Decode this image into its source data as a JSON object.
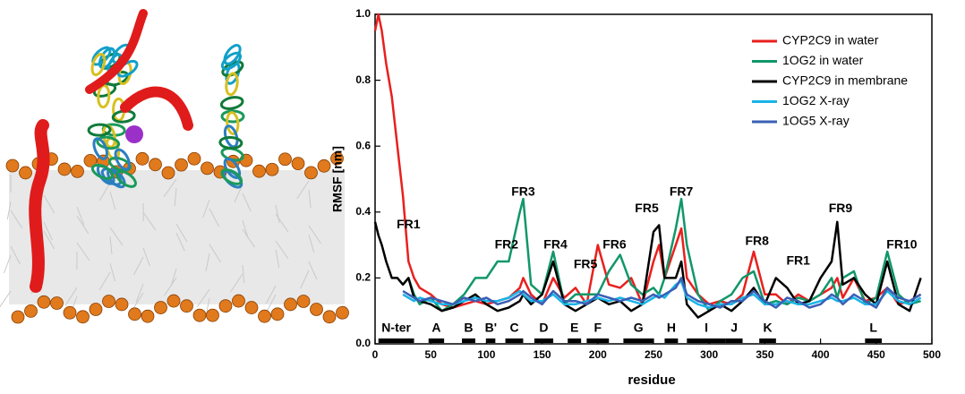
{
  "chart_data": {
    "type": "line",
    "xlabel": "residue",
    "ylabel": "RMSF [nm]",
    "xlim": [
      0,
      500
    ],
    "ylim": [
      0,
      1
    ],
    "xticks": [
      0,
      50,
      100,
      150,
      200,
      250,
      300,
      350,
      400,
      450,
      500
    ],
    "yticks": [
      {
        "value": 0,
        "label": "0.0"
      },
      0.2,
      0.4,
      0.6,
      0.8,
      {
        "value": 1,
        "label": "1.0"
      }
    ],
    "legend": "upper right",
    "x": [
      0,
      3,
      6,
      10,
      15,
      20,
      25,
      30,
      35,
      40,
      50,
      60,
      70,
      80,
      90,
      100,
      110,
      120,
      130,
      133,
      140,
      150,
      160,
      170,
      180,
      190,
      200,
      210,
      220,
      230,
      240,
      250,
      255,
      260,
      270,
      275,
      280,
      290,
      300,
      310,
      320,
      330,
      340,
      350,
      360,
      370,
      380,
      390,
      400,
      410,
      415,
      420,
      430,
      440,
      450,
      460,
      470,
      480,
      490
    ],
    "series": [
      {
        "name": "CYP2C9 in water",
        "color": "#e8201e",
        "values": [
          0.95,
          1.0,
          0.95,
          0.85,
          0.75,
          0.6,
          0.45,
          0.25,
          0.2,
          0.17,
          0.15,
          0.12,
          0.11,
          0.12,
          0.13,
          0.12,
          0.13,
          0.14,
          0.17,
          0.2,
          0.15,
          0.12,
          0.2,
          0.14,
          0.17,
          0.12,
          0.3,
          0.18,
          0.17,
          0.2,
          0.12,
          0.25,
          0.3,
          0.2,
          0.3,
          0.35,
          0.2,
          0.15,
          0.12,
          0.13,
          0.12,
          0.15,
          0.28,
          0.15,
          0.15,
          0.12,
          0.15,
          0.13,
          0.15,
          0.17,
          0.2,
          0.14,
          0.2,
          0.13,
          0.14,
          0.17,
          0.12,
          0.13,
          0.15
        ]
      },
      {
        "name": "1OG2 in water",
        "color": "#10976a",
        "values": [
          null,
          null,
          null,
          null,
          null,
          null,
          0.18,
          0.2,
          0.15,
          0.12,
          0.14,
          0.1,
          0.12,
          0.15,
          0.2,
          0.2,
          0.25,
          0.25,
          0.4,
          0.44,
          0.18,
          0.15,
          0.28,
          0.12,
          0.15,
          0.15,
          0.15,
          0.22,
          0.27,
          0.18,
          0.15,
          0.17,
          0.15,
          0.2,
          0.35,
          0.44,
          0.3,
          0.15,
          0.1,
          0.13,
          0.15,
          0.2,
          0.22,
          0.12,
          0.13,
          0.12,
          0.14,
          0.13,
          0.15,
          0.2,
          0.14,
          0.2,
          0.22,
          0.12,
          0.14,
          0.28,
          0.15,
          0.12,
          0.13
        ]
      },
      {
        "name": "CYP2C9 in membrane",
        "color": "#000000",
        "values": [
          0.37,
          0.33,
          0.3,
          0.25,
          0.2,
          0.2,
          0.18,
          0.2,
          0.14,
          0.13,
          0.12,
          0.1,
          0.11,
          0.13,
          0.15,
          0.12,
          0.1,
          0.11,
          0.13,
          0.15,
          0.12,
          0.15,
          0.25,
          0.12,
          0.1,
          0.12,
          0.14,
          0.12,
          0.13,
          0.1,
          0.12,
          0.34,
          0.36,
          0.2,
          0.2,
          0.25,
          0.12,
          0.08,
          0.1,
          0.12,
          0.1,
          0.13,
          0.17,
          0.12,
          0.2,
          0.17,
          0.12,
          0.13,
          0.2,
          0.25,
          0.37,
          0.18,
          0.2,
          0.15,
          0.12,
          0.25,
          0.12,
          0.1,
          0.2
        ]
      },
      {
        "name": "1OG2 X-ray",
        "color": "#19b4e6",
        "values": [
          null,
          null,
          null,
          null,
          null,
          null,
          0.15,
          0.14,
          0.13,
          0.14,
          0.13,
          0.12,
          0.12,
          0.13,
          0.14,
          0.13,
          0.13,
          0.14,
          0.16,
          0.15,
          0.13,
          0.13,
          0.15,
          0.12,
          0.12,
          0.13,
          0.14,
          0.13,
          0.14,
          0.13,
          0.12,
          0.14,
          0.15,
          0.14,
          0.18,
          0.19,
          0.14,
          0.12,
          0.11,
          0.12,
          0.12,
          0.14,
          0.15,
          0.12,
          0.12,
          0.13,
          0.12,
          0.12,
          0.13,
          0.14,
          0.13,
          0.13,
          0.14,
          0.12,
          0.12,
          0.16,
          0.13,
          0.12,
          0.14
        ]
      },
      {
        "name": "1OG5 X-ray",
        "color": "#3a5fb5",
        "values": [
          null,
          null,
          null,
          null,
          null,
          null,
          0.16,
          0.15,
          0.14,
          0.13,
          0.14,
          0.13,
          0.12,
          0.14,
          0.13,
          0.14,
          0.12,
          0.13,
          0.15,
          0.16,
          0.14,
          0.12,
          0.16,
          0.13,
          0.13,
          0.12,
          0.15,
          0.14,
          0.13,
          0.14,
          0.13,
          0.15,
          0.14,
          0.15,
          0.17,
          0.2,
          0.15,
          0.13,
          0.12,
          0.11,
          0.13,
          0.13,
          0.16,
          0.13,
          0.11,
          0.14,
          0.13,
          0.11,
          0.12,
          0.15,
          0.14,
          0.12,
          0.15,
          0.13,
          0.11,
          0.17,
          0.14,
          0.13,
          0.15
        ]
      }
    ],
    "annotations": [
      {
        "text": "FR1",
        "x": 30,
        "y": 0.36
      },
      {
        "text": "FR2",
        "x": 118,
        "y": 0.3
      },
      {
        "text": "FR3",
        "x": 133,
        "y": 0.46
      },
      {
        "text": "FR4",
        "x": 162,
        "y": 0.3
      },
      {
        "text": "FR5",
        "x": 189,
        "y": 0.24
      },
      {
        "text": "FR6",
        "x": 215,
        "y": 0.3
      },
      {
        "text": "FR5",
        "x": 244,
        "y": 0.41
      },
      {
        "text": "FR7",
        "x": 275,
        "y": 0.46
      },
      {
        "text": "FR8",
        "x": 343,
        "y": 0.31
      },
      {
        "text": "FR1",
        "x": 380,
        "y": 0.25
      },
      {
        "text": "FR9",
        "x": 418,
        "y": 0.41
      },
      {
        "text": "FR10",
        "x": 473,
        "y": 0.3
      }
    ],
    "segments": [
      {
        "label": "N-ter",
        "start": 3,
        "end": 35
      },
      {
        "label": "A",
        "start": 48,
        "end": 62
      },
      {
        "label": "B",
        "start": 78,
        "end": 90
      },
      {
        "label": "B'",
        "start": 100,
        "end": 108
      },
      {
        "label": "C",
        "start": 117,
        "end": 133
      },
      {
        "label": "D",
        "start": 143,
        "end": 160
      },
      {
        "label": "E",
        "start": 173,
        "end": 185
      },
      {
        "label": "F",
        "start": 190,
        "end": 210
      },
      {
        "label": "G",
        "start": 223,
        "end": 250
      },
      {
        "label": "H",
        "start": 260,
        "end": 272
      },
      {
        "label": "I",
        "start": 280,
        "end": 315
      },
      {
        "label": "J",
        "start": 315,
        "end": 330
      },
      {
        "label": "K",
        "start": 345,
        "end": 360
      },
      {
        "label": "L",
        "start": 440,
        "end": 455
      }
    ]
  }
}
